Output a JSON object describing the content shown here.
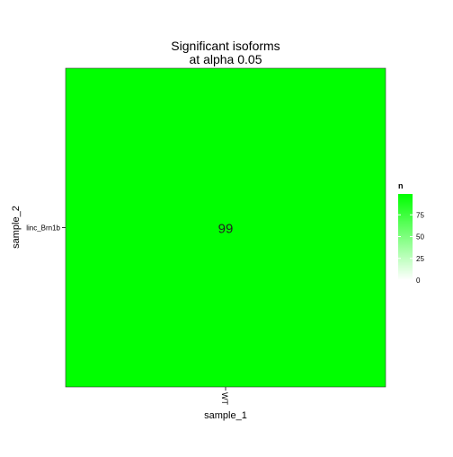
{
  "chart_data": {
    "type": "heatmap",
    "title": "Significant isoforms\nat alpha 0.05",
    "xlabel": "sample_1",
    "ylabel": "sample_2",
    "x_categories": [
      "WT"
    ],
    "y_categories": [
      "linc_Brn1b"
    ],
    "cells": [
      {
        "x": "WT",
        "y": "linc_Brn1b",
        "value": 99,
        "label": "99"
      }
    ],
    "legend": {
      "title": "n",
      "placement": "right",
      "ticks": [
        0,
        25,
        50,
        75
      ],
      "range": [
        0,
        99
      ],
      "low_color": "#ffffff",
      "high_color": "#00ff00"
    },
    "grid": false
  }
}
